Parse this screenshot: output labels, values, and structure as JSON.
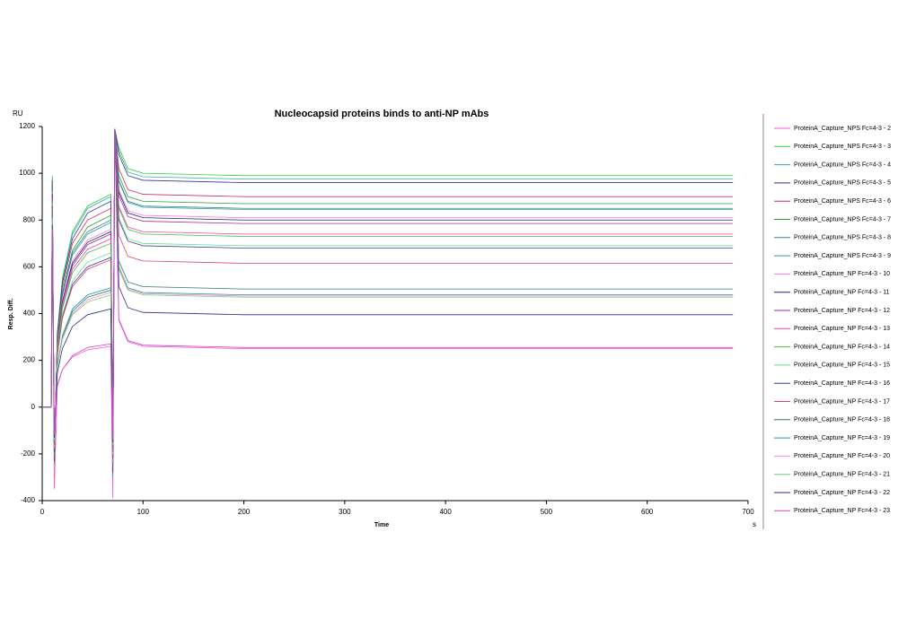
{
  "chart_data": {
    "type": "line",
    "title": "Nucleocapsid proteins binds to anti-NP mAbs",
    "y_unit": "RU",
    "y_label": "Resp. Diff.",
    "x_label": "Time",
    "x_unit": "s",
    "xlim": [
      0,
      700
    ],
    "ylim": [
      -400,
      1200
    ],
    "xticks": [
      0,
      100,
      200,
      300,
      400,
      500,
      600,
      700
    ],
    "yticks": [
      -400,
      -200,
      0,
      200,
      400,
      600,
      800,
      1000,
      1200
    ],
    "x": [
      0,
      9,
      10,
      12,
      15,
      20,
      30,
      45,
      68,
      70,
      72,
      76,
      85,
      100,
      200,
      400,
      685
    ],
    "series": [
      {
        "name": "ProteinA_Capture_NPS Fc=4-3 - 2",
        "color": "#ff55cc",
        "values": [
          0,
          0,
          850,
          -350,
          90,
          160,
          215,
          245,
          260,
          -390,
          1190,
          370,
          280,
          260,
          250,
          250,
          250
        ]
      },
      {
        "name": "ProteinA_Capture_NPS Fc=4-3 - 3",
        "color": "#33cc33",
        "values": [
          0,
          0,
          990,
          -250,
          320,
          550,
          750,
          860,
          910,
          -300,
          1190,
          1110,
          1020,
          1000,
          990,
          990,
          990
        ]
      },
      {
        "name": "ProteinA_Capture_NPS Fc=4-3 - 4",
        "color": "#33aaaa",
        "values": [
          0,
          0,
          980,
          -240,
          315,
          540,
          740,
          850,
          900,
          -300,
          1190,
          1095,
          1005,
          985,
          975,
          975,
          975
        ]
      },
      {
        "name": "ProteinA_Capture_NPS Fc=4-3 - 5",
        "color": "#333399",
        "values": [
          0,
          0,
          970,
          -230,
          310,
          530,
          720,
          830,
          880,
          -280,
          1190,
          1080,
          990,
          970,
          960,
          960,
          960
        ]
      },
      {
        "name": "ProteinA_Capture_NPS Fc=4-3 - 6",
        "color": "#cc3355",
        "values": [
          0,
          0,
          960,
          -220,
          300,
          510,
          700,
          800,
          850,
          -260,
          1190,
          1020,
          930,
          910,
          900,
          900,
          900
        ]
      },
      {
        "name": "ProteinA_Capture_NPS Fc=4-3 - 7",
        "color": "#339933",
        "values": [
          0,
          0,
          950,
          -210,
          290,
          490,
          670,
          770,
          820,
          -250,
          1190,
          990,
          900,
          880,
          870,
          870,
          870
        ]
      },
      {
        "name": "ProteinA_Capture_NPS Fc=4-3 - 8",
        "color": "#338888",
        "values": [
          0,
          0,
          940,
          -200,
          280,
          480,
          660,
          750,
          800,
          -240,
          1190,
          970,
          880,
          860,
          850,
          850,
          850
        ]
      },
      {
        "name": "ProteinA_Capture_NPS Fc=4-3 - 9",
        "color": "#3399aa",
        "values": [
          0,
          0,
          930,
          -200,
          275,
          475,
          650,
          740,
          790,
          -240,
          1190,
          965,
          875,
          855,
          845,
          845,
          845
        ]
      },
      {
        "name": "ProteinA_Capture_NP Fc=4-3 - 10",
        "color": "#ff77dd",
        "values": [
          0,
          0,
          920,
          -190,
          265,
          455,
          625,
          715,
          760,
          -230,
          1190,
          930,
          840,
          820,
          810,
          810,
          810
        ]
      },
      {
        "name": "ProteinA_Capture_NP Fc=4-3 - 11",
        "color": "#222277",
        "values": [
          0,
          0,
          910,
          -190,
          260,
          450,
          615,
          705,
          750,
          -220,
          1190,
          920,
          830,
          810,
          800,
          800,
          800
        ]
      },
      {
        "name": "ProteinA_Capture_NP Fc=4-3 - 12",
        "color": "#993399",
        "values": [
          0,
          0,
          900,
          -180,
          260,
          445,
          605,
          695,
          740,
          -220,
          1190,
          905,
          815,
          795,
          785,
          785,
          785
        ]
      },
      {
        "name": "ProteinA_Capture_NP Fc=4-3 - 13",
        "color": "#ee44aa",
        "values": [
          0,
          0,
          890,
          -180,
          250,
          430,
          590,
          675,
          720,
          -210,
          1190,
          860,
          770,
          750,
          740,
          740,
          740
        ]
      },
      {
        "name": "ProteinA_Capture_NP Fc=4-3 - 14",
        "color": "#44bb44",
        "values": [
          0,
          0,
          880,
          -170,
          245,
          420,
          575,
          660,
          700,
          -200,
          1190,
          850,
          760,
          740,
          730,
          730,
          730
        ]
      },
      {
        "name": "ProteinA_Capture_NP Fc=4-3 - 15",
        "color": "#66dd99",
        "values": [
          0,
          0,
          870,
          -170,
          230,
          395,
          540,
          620,
          660,
          -200,
          1190,
          810,
          720,
          700,
          690,
          690,
          690
        ]
      },
      {
        "name": "ProteinA_Capture_NP Fc=4-3 - 16",
        "color": "#334488",
        "values": [
          0,
          0,
          860,
          -160,
          225,
          385,
          525,
          600,
          640,
          -190,
          1190,
          800,
          710,
          690,
          680,
          680,
          680
        ]
      },
      {
        "name": "ProteinA_Capture_NP Fc=4-3 - 17",
        "color": "#dd4466",
        "values": [
          0,
          0,
          850,
          -160,
          220,
          380,
          515,
          590,
          630,
          -190,
          1190,
          735,
          645,
          625,
          615,
          615,
          615
        ]
      },
      {
        "name": "ProteinA_Capture_NP Fc=4-3 - 18",
        "color": "#337777",
        "values": [
          0,
          0,
          830,
          -150,
          175,
          300,
          410,
          470,
          500,
          -170,
          1190,
          625,
          535,
          515,
          505,
          505,
          505
        ]
      },
      {
        "name": "ProteinA_Capture_NP Fc=4-3 - 19",
        "color": "#2299aa",
        "values": [
          0,
          0,
          820,
          -150,
          180,
          305,
          420,
          480,
          510,
          -170,
          1190,
          600,
          510,
          490,
          480,
          480,
          480
        ]
      },
      {
        "name": "ProteinA_Capture_NP Fc=4-3 - 20",
        "color": "#ff88cc",
        "values": [
          0,
          0,
          810,
          -140,
          170,
          295,
          400,
          460,
          490,
          -160,
          1190,
          595,
          505,
          485,
          475,
          475,
          475
        ]
      },
      {
        "name": "ProteinA_Capture_NP Fc=4-3 - 21",
        "color": "#77cc77",
        "values": [
          0,
          0,
          800,
          -140,
          170,
          290,
          395,
          450,
          480,
          -160,
          1190,
          590,
          500,
          480,
          470,
          470,
          470
        ]
      },
      {
        "name": "ProteinA_Capture_NP Fc=4-3 - 22",
        "color": "#2a2a88",
        "values": [
          0,
          0,
          780,
          -130,
          145,
          250,
          345,
          395,
          420,
          -150,
          1190,
          515,
          425,
          405,
          395,
          395,
          395
        ]
      },
      {
        "name": "ProteinA_Capture_NP Fc=4-3 - 23",
        "color": "#cc44cc",
        "values": [
          0,
          0,
          760,
          -120,
          95,
          160,
          220,
          255,
          270,
          -140,
          1190,
          375,
          285,
          265,
          255,
          255,
          255
        ]
      }
    ]
  }
}
